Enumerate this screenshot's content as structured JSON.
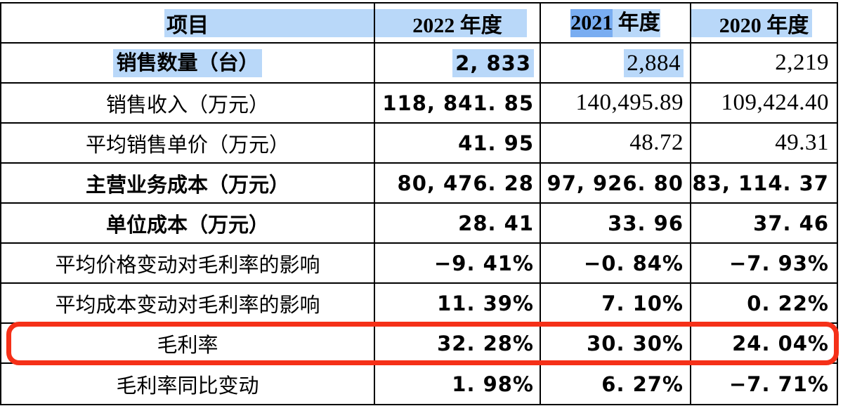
{
  "table": {
    "header": {
      "item": "项目",
      "col_2022": "2022 年度",
      "col_2021_selected": "2021",
      "col_2021_rest": " 年度",
      "col_2020": "2020 年度"
    },
    "rows": [
      {
        "label": "销售数量（台）",
        "values": [
          "2, 833",
          "2,884",
          "2,219"
        ]
      },
      {
        "label": "销售收入（万元）",
        "values": [
          "118, 841. 85",
          "140,495.89",
          "109,424.40"
        ]
      },
      {
        "label": "平均销售单价（万元）",
        "values": [
          "41. 95",
          "48.72",
          "49.31"
        ]
      },
      {
        "label": "主营业务成本（万元）",
        "values": [
          "80, 476. 28",
          "97, 926. 80",
          "83, 114. 37"
        ]
      },
      {
        "label": "单位成本（万元）",
        "values": [
          "28. 41",
          "33. 96",
          "37. 46"
        ]
      },
      {
        "label": "平均价格变动对毛利率的影响",
        "values": [
          "−9. 41%",
          "−0. 84%",
          "−7. 93%"
        ]
      },
      {
        "label": "平均成本变动对毛利率的影响",
        "values": [
          "11. 39%",
          "7. 10%",
          "0. 22%"
        ]
      },
      {
        "label": "毛利率",
        "values": [
          "32. 28%",
          "30. 30%",
          "24. 04%"
        ]
      },
      {
        "label": "毛利率同比变动",
        "values": [
          "1. 98%",
          "6. 27%",
          "−7. 71%"
        ]
      }
    ],
    "colors": {
      "selection_light": "#b9d8f9",
      "selection_dark": "#79adf1",
      "annotation_red": "#f53018",
      "border": "#000000"
    },
    "annotation": {
      "type": "red-rounded-box",
      "highlighted_row": "毛利率"
    }
  }
}
